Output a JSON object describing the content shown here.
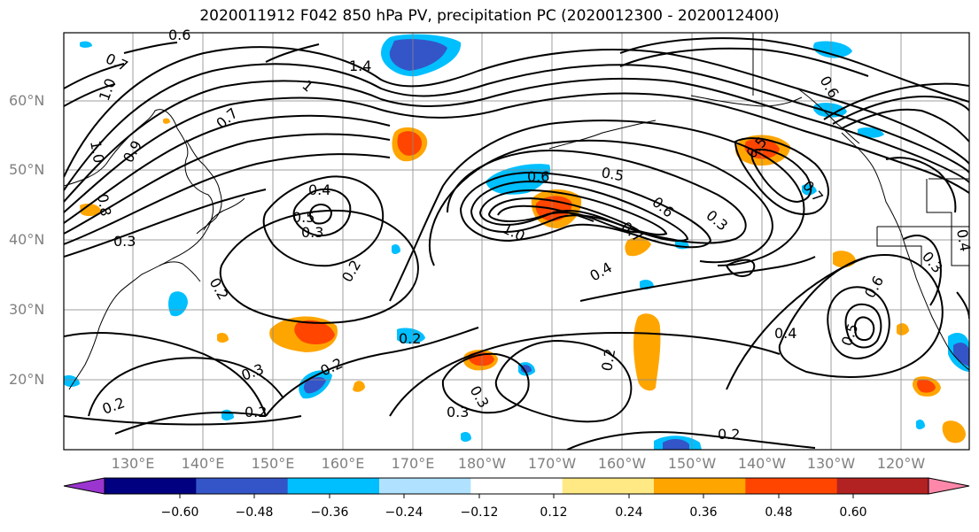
{
  "title": "2020011912 F042 850 hPa PV, precipitation PC (2020012300 - 2020012400)",
  "lat_labels": [
    "60°N",
    "50°N",
    "40°N",
    "30°N",
    "20°N"
  ],
  "lon_labels": [
    "130°E",
    "140°E",
    "150°E",
    "160°E",
    "170°E",
    "180°W",
    "170°W",
    "160°W",
    "150°W",
    "140°W",
    "130°W",
    "120°W"
  ],
  "contour_labels": [
    "0.7",
    "0.6",
    "1.4",
    "1.0",
    "1",
    "0.7",
    "1.0",
    "0.9",
    "0.8",
    "0.3",
    "0.4",
    "0.5",
    "0.3",
    "0.2",
    "0.2",
    "0.6",
    "0.5",
    "1.0",
    "0.6",
    "0.7",
    "0.3",
    "0.4",
    "0.5",
    "0.6",
    "0.7",
    "0.2",
    "0.3",
    "0.2",
    "0.3",
    "0.2",
    "0.3",
    "0.2",
    "0.4",
    "0.5",
    "0.6",
    "0.2",
    "0.2",
    "0.3",
    "0.4"
  ],
  "colorbar": {
    "tick_labels": [
      "−0.60",
      "−0.48",
      "−0.36",
      "−0.24",
      "−0.12",
      "0.12",
      "0.24",
      "0.36",
      "0.48",
      "0.60"
    ],
    "colors": [
      "#9b35d0",
      "#000080",
      "#3455c8",
      "#00bfff",
      "#b0e2ff",
      "#ffffff",
      "#ffe984",
      "#ffa500",
      "#ff4500",
      "#b22222",
      "#ff88aa"
    ]
  }
}
